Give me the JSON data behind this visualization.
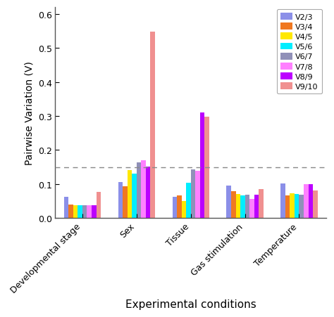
{
  "categories": [
    "Developmental stage",
    "Sex",
    "Tissue",
    "Gas stimulation",
    "Temperature"
  ],
  "series": [
    {
      "label": "V2/3",
      "color": "#8B8FE8",
      "values": [
        0.063,
        0.107,
        0.063,
        0.096,
        0.102
      ]
    },
    {
      "label": "V3/4",
      "color": "#F07820",
      "values": [
        0.04,
        0.093,
        0.067,
        0.08,
        0.067
      ]
    },
    {
      "label": "V4/5",
      "color": "#FFE800",
      "values": [
        0.038,
        0.142,
        0.051,
        0.07,
        0.072
      ]
    },
    {
      "label": "V5/6",
      "color": "#00EEFF",
      "values": [
        0.037,
        0.131,
        0.104,
        0.067,
        0.07
      ]
    },
    {
      "label": "V6/7",
      "color": "#9090B8",
      "values": [
        0.038,
        0.163,
        0.144,
        0.068,
        0.068
      ]
    },
    {
      "label": "V7/8",
      "color": "#FF80FF",
      "values": [
        0.038,
        0.17,
        0.14,
        0.057,
        0.099
      ]
    },
    {
      "label": "V8/9",
      "color": "#BB00FF",
      "values": [
        0.038,
        0.152,
        0.31,
        0.068,
        0.099
      ]
    },
    {
      "label": "V9/10",
      "color": "#F09090",
      "values": [
        0.078,
        0.547,
        0.299,
        0.085,
        0.082
      ]
    }
  ],
  "ylabel": "Pairwise Variation (V)",
  "xlabel": "Experimental conditions",
  "ylim": [
    0.0,
    0.62
  ],
  "yticks": [
    0.0,
    0.1,
    0.2,
    0.3,
    0.4,
    0.5,
    0.6
  ],
  "hline_y": 0.15,
  "hline_color": "#888888",
  "background_color": "#ffffff",
  "bar_width": 0.085,
  "figsize": [
    4.74,
    4.52
  ],
  "dpi": 100
}
